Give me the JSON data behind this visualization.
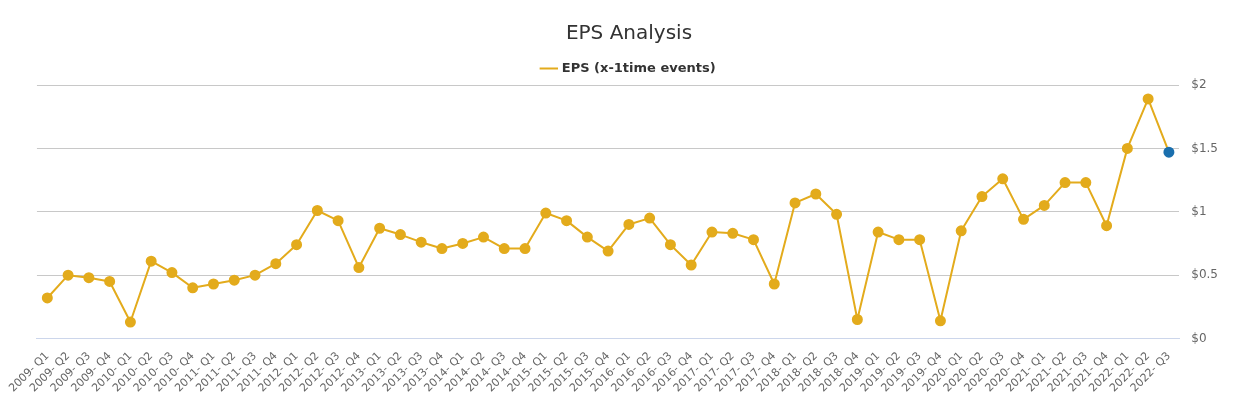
{
  "chart_data": {
    "type": "line",
    "title": "EPS Analysis",
    "categories": [
      "2009- Q1",
      "2009- Q2",
      "2009- Q3",
      "2009- Q4",
      "2010- Q1",
      "2010- Q2",
      "2010- Q3",
      "2010- Q4",
      "2011- Q1",
      "2011- Q2",
      "2011- Q3",
      "2011- Q4",
      "2012- Q1",
      "2012- Q2",
      "2012- Q3",
      "2012- Q4",
      "2013- Q1",
      "2013- Q2",
      "2013- Q3",
      "2013- Q4",
      "2014- Q1",
      "2014- Q2",
      "2014- Q3",
      "2014- Q4",
      "2015- Q1",
      "2015- Q2",
      "2015- Q3",
      "2015- Q4",
      "2016- Q1",
      "2016- Q2",
      "2016- Q3",
      "2016- Q4",
      "2017- Q1",
      "2017- Q2",
      "2017- Q3",
      "2017- Q4",
      "2018- Q1",
      "2018- Q2",
      "2018- Q3",
      "2018- Q4",
      "2019- Q1",
      "2019- Q2",
      "2019- Q3",
      "2019- Q4",
      "2020- Q1",
      "2020- Q2",
      "2020- Q3",
      "2020- Q4",
      "2021- Q1",
      "2021- Q2",
      "2021- Q3",
      "2021- Q4",
      "2022- Q1",
      "2022- Q2",
      "2022- Q3"
    ],
    "series": [
      {
        "name": "EPS (x-1time events)",
        "color": "#e3ab1c",
        "colors": [
          "#e3ab1c",
          "#e3ab1c",
          "#e3ab1c",
          "#e3ab1c",
          "#e3ab1c",
          "#e3ab1c",
          "#e3ab1c",
          "#e3ab1c",
          "#e3ab1c",
          "#e3ab1c",
          "#e3ab1c",
          "#e3ab1c",
          "#e3ab1c",
          "#e3ab1c",
          "#e3ab1c",
          "#e3ab1c",
          "#e3ab1c",
          "#e3ab1c",
          "#e3ab1c",
          "#e3ab1c",
          "#e3ab1c",
          "#e3ab1c",
          "#e3ab1c",
          "#e3ab1c",
          "#e3ab1c",
          "#e3ab1c",
          "#e3ab1c",
          "#e3ab1c",
          "#e3ab1c",
          "#e3ab1c",
          "#e3ab1c",
          "#e3ab1c",
          "#e3ab1c",
          "#e3ab1c",
          "#e3ab1c",
          "#e3ab1c",
          "#e3ab1c",
          "#e3ab1c",
          "#e3ab1c",
          "#e3ab1c",
          "#e3ab1c",
          "#e3ab1c",
          "#e3ab1c",
          "#e3ab1c",
          "#e3ab1c",
          "#e3ab1c",
          "#e3ab1c",
          "#e3ab1c",
          "#e3ab1c",
          "#e3ab1c",
          "#e3ab1c",
          "#e3ab1c",
          "#e3ab1c",
          "#e3ab1c",
          "#1a6fae"
        ],
        "values": [
          0.32,
          0.5,
          0.48,
          0.45,
          0.13,
          0.61,
          0.52,
          0.4,
          0.43,
          0.46,
          0.5,
          0.59,
          0.74,
          1.01,
          0.93,
          0.56,
          0.87,
          0.82,
          0.76,
          0.71,
          0.75,
          0.8,
          0.71,
          0.71,
          0.99,
          0.93,
          0.8,
          0.69,
          0.9,
          0.95,
          0.74,
          0.58,
          0.84,
          0.83,
          0.78,
          0.43,
          1.07,
          1.14,
          0.98,
          0.15,
          0.84,
          0.78,
          0.78,
          0.14,
          0.85,
          1.12,
          1.26,
          0.94,
          1.05,
          1.23,
          1.23,
          0.89,
          1.5,
          1.89,
          1.47
        ]
      }
    ],
    "ylim": [
      0,
      2
    ],
    "yticks": [
      {
        "value": 0,
        "label": "$0"
      },
      {
        "value": 0.5,
        "label": "$0.5"
      },
      {
        "value": 1,
        "label": "$1"
      },
      {
        "value": 1.5,
        "label": "$1.5"
      },
      {
        "value": 2,
        "label": "$2"
      }
    ],
    "grid": "y",
    "legend": "top",
    "marker": "circle",
    "line_style": "solid"
  }
}
